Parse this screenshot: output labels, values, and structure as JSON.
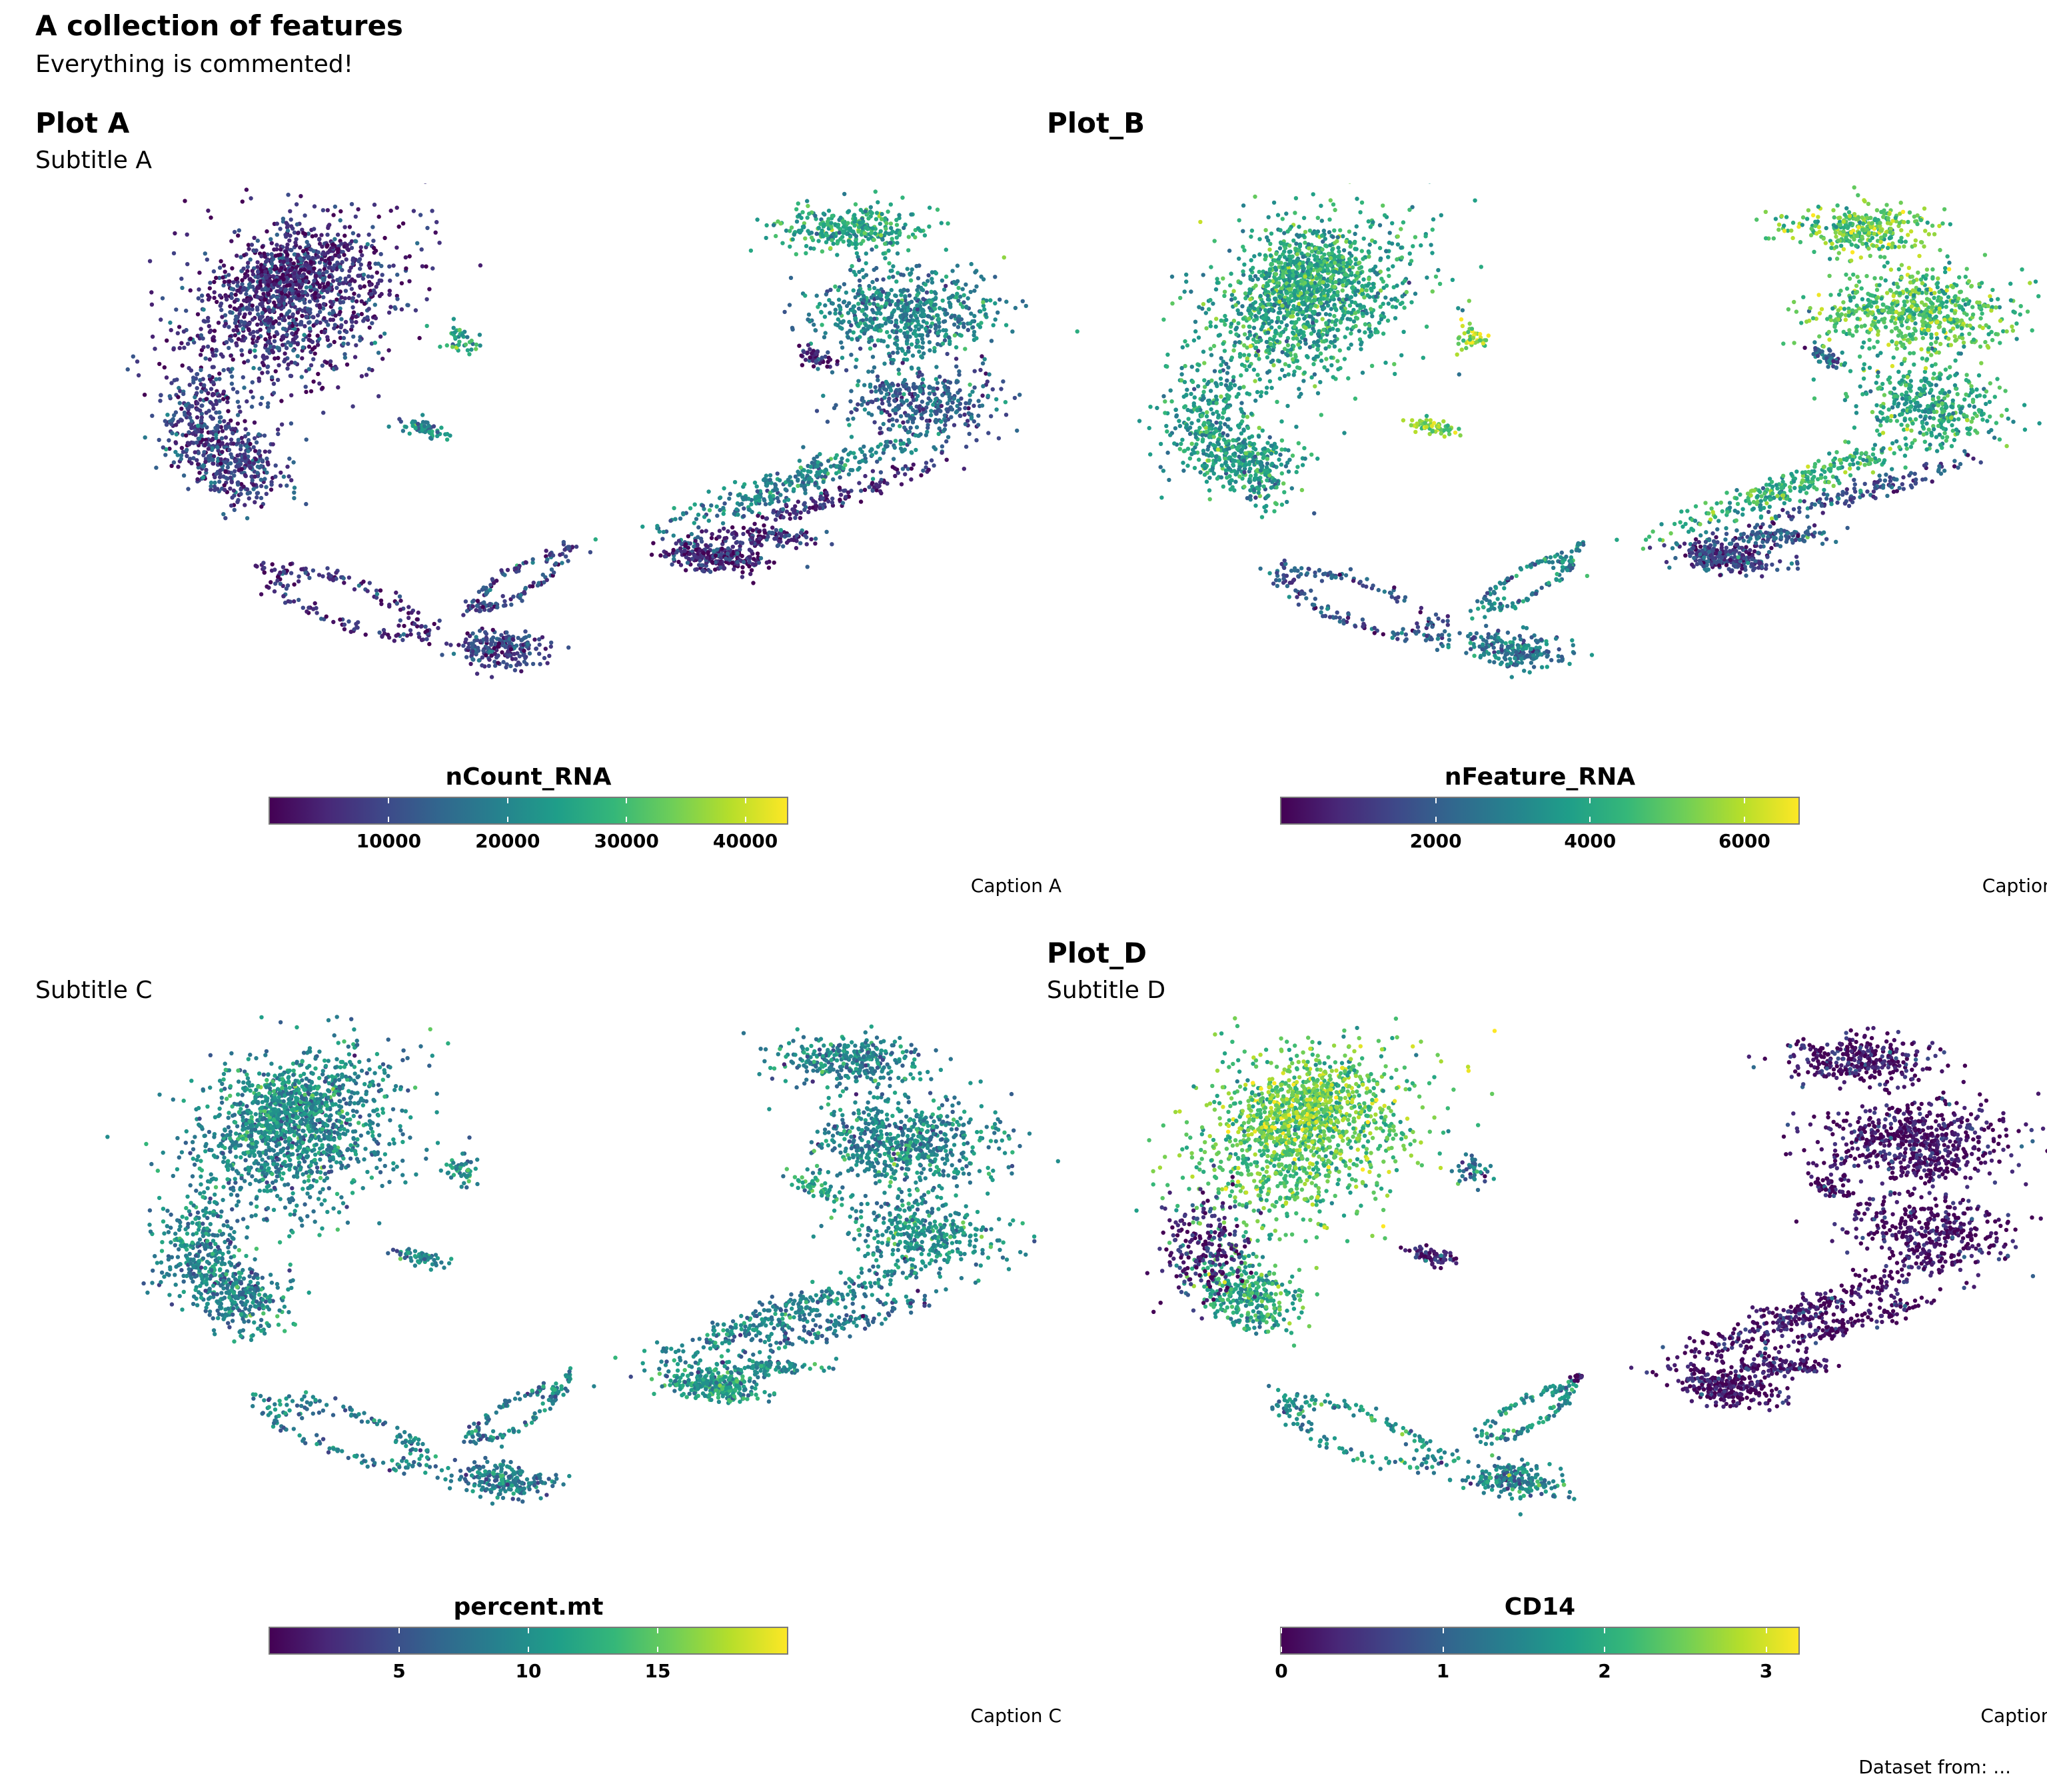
{
  "title": "A collection of features",
  "subtitle": "Everything is commented!",
  "footer_caption": "Dataset from: ...",
  "chart_data": [
    {
      "type": "scatter",
      "title": "Plot A",
      "subtitle": "Subtitle A",
      "caption": "Caption A",
      "feature": "nCount_RNA",
      "colormap": "viridis",
      "color_range": [
        0,
        43500
      ],
      "legend_ticks": [
        10000,
        20000,
        30000,
        40000
      ],
      "legend_tick_labels": [
        "10000",
        "20000",
        "30000",
        "40000"
      ],
      "cluster_levels": [
        0.15,
        0.12,
        0.2,
        0.2,
        0.5,
        0.15,
        0.2,
        0.22,
        0.6,
        0.45,
        0.3,
        0.45,
        0.12,
        0.12,
        0.15,
        0.12,
        0.2,
        0.6
      ]
    },
    {
      "type": "scatter",
      "title": "Plot_B",
      "subtitle": "",
      "caption": "Caption B",
      "feature": "nFeature_RNA",
      "colormap": "viridis",
      "color_range": [
        0,
        6700
      ],
      "legend_ticks": [
        2000,
        4000,
        6000
      ],
      "legend_tick_labels": [
        "2000",
        "4000",
        "6000"
      ],
      "cluster_levels": [
        0.58,
        0.62,
        0.55,
        0.55,
        0.8,
        0.25,
        0.4,
        0.45,
        0.75,
        0.7,
        0.6,
        0.65,
        0.2,
        0.25,
        0.3,
        0.3,
        0.4,
        0.85
      ]
    },
    {
      "type": "scatter",
      "title": "",
      "subtitle": "Subtitle C",
      "caption": "Caption C",
      "feature": "percent.mt",
      "colormap": "viridis",
      "color_range": [
        0,
        20
      ],
      "legend_ticks": [
        5,
        10,
        15
      ],
      "legend_tick_labels": [
        "5",
        "10",
        "15"
      ],
      "cluster_levels": [
        0.45,
        0.52,
        0.45,
        0.45,
        0.45,
        0.42,
        0.4,
        0.42,
        0.45,
        0.45,
        0.5,
        0.45,
        0.55,
        0.38,
        0.5,
        0.58,
        0.55,
        0.5
      ]
    },
    {
      "type": "scatter",
      "title": "Plot_D",
      "subtitle": "Subtitle D",
      "caption": "Caption D",
      "feature": "CD14",
      "colormap": "viridis",
      "color_range": [
        0,
        3.2
      ],
      "legend_ticks": [
        0,
        1,
        2,
        3
      ],
      "legend_tick_labels": [
        "0",
        "1",
        "2",
        "3"
      ],
      "cluster_levels": [
        0.72,
        0.82,
        0.6,
        0.08,
        0.1,
        0.5,
        0.45,
        0.5,
        0.04,
        0.04,
        0.03,
        0.04,
        0.03,
        0.04,
        0.05,
        0.04,
        0.04,
        0.35
      ]
    }
  ]
}
